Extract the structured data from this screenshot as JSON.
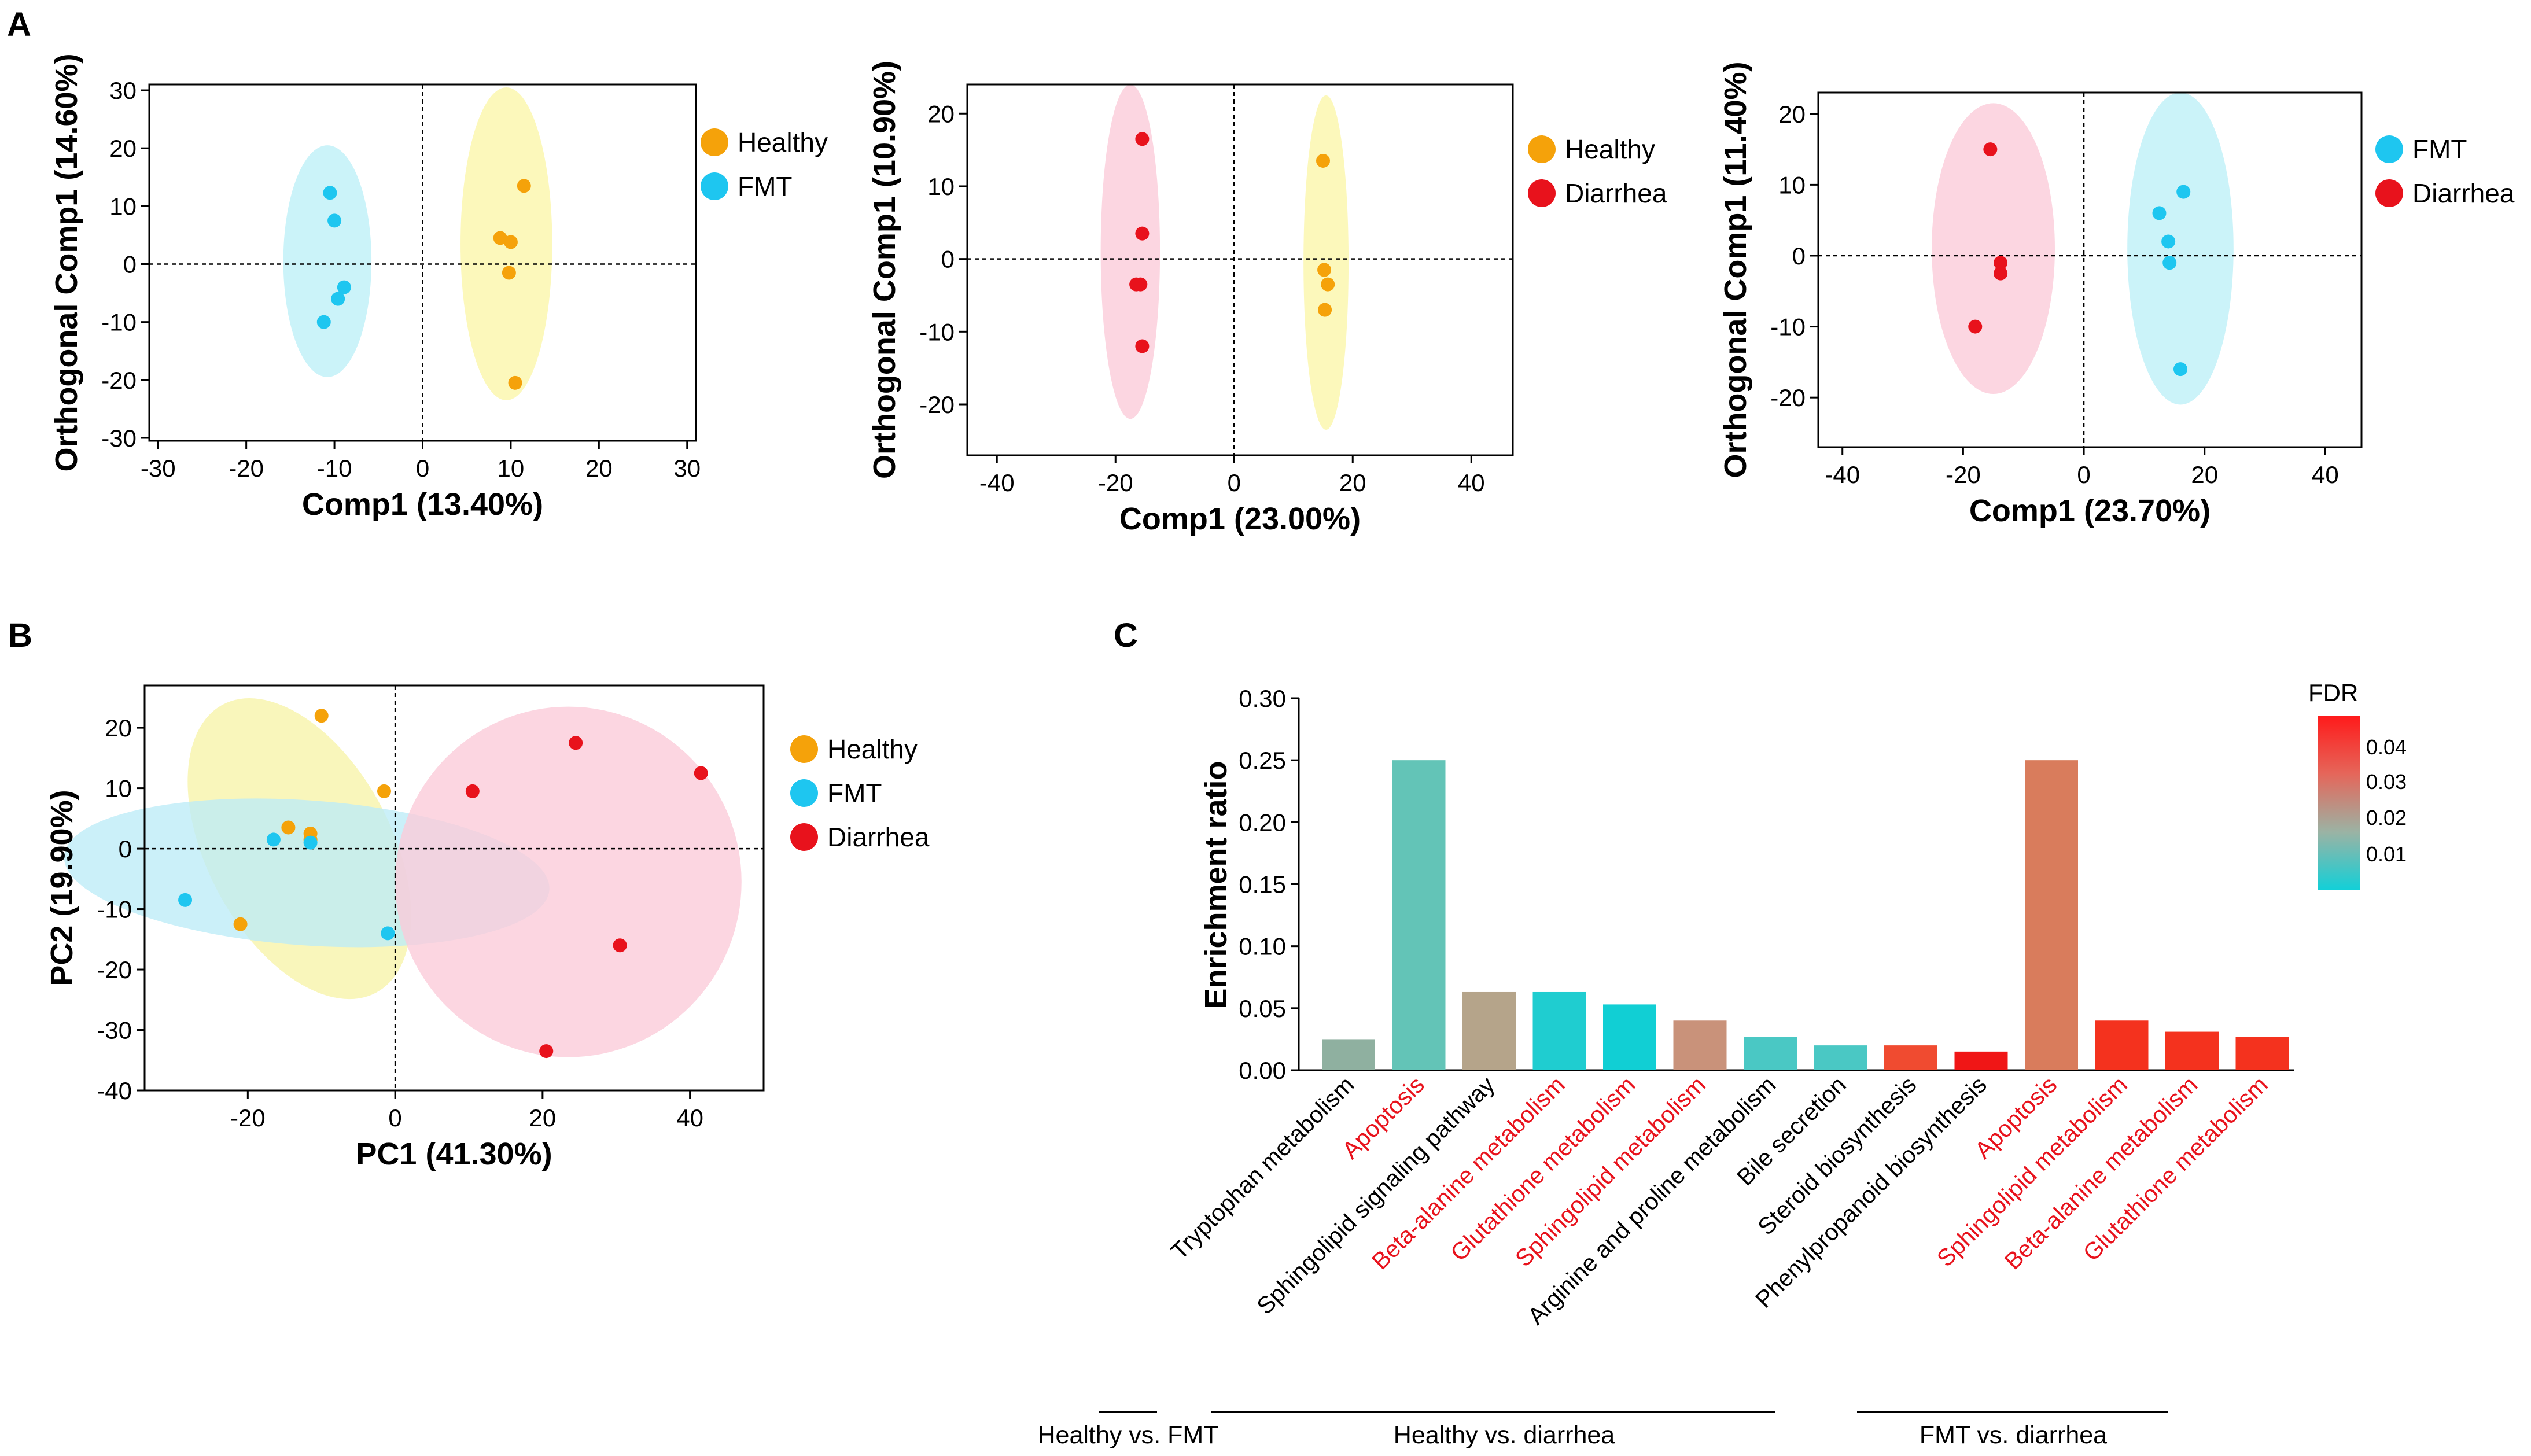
{
  "panel_letters": [
    "A",
    "B",
    "C"
  ],
  "chart_data": [
    {
      "id": "A1",
      "type": "scatter",
      "title": "",
      "xlabel": "Comp1 (13.40%)",
      "ylabel": "Orthogonal Comp1 (14.60%)",
      "xlim": [
        -31,
        31
      ],
      "ylim": [
        -30.5,
        31
      ],
      "xticks": [
        -30,
        -20,
        -10,
        0,
        10,
        20,
        30
      ],
      "yticks": [
        -30,
        -20,
        -10,
        0,
        10,
        20,
        30
      ],
      "legend_position": "right",
      "series": [
        {
          "name": "Healthy",
          "color": "#f5a20a",
          "ellipse_color": "#fbf6a8",
          "ellipse": {
            "cx": 9.5,
            "cy": 3.5,
            "rx": 5.2,
            "ry": 27
          },
          "points": [
            [
              11.5,
              13.5
            ],
            [
              8.8,
              4.5
            ],
            [
              10.0,
              3.8
            ],
            [
              9.8,
              -1.5
            ],
            [
              10.5,
              -20.5
            ]
          ]
        },
        {
          "name": "FMT",
          "color": "#1ec6f0",
          "ellipse_color": "#bdeff7",
          "ellipse": {
            "cx": -10.8,
            "cy": 0.5,
            "rx": 5.0,
            "ry": 20
          },
          "points": [
            [
              -10.5,
              12.3
            ],
            [
              -10.0,
              7.5
            ],
            [
              -8.9,
              -4.0
            ],
            [
              -9.6,
              -6.0
            ],
            [
              -11.2,
              -10.0
            ]
          ]
        }
      ]
    },
    {
      "id": "A2",
      "type": "scatter",
      "title": "",
      "xlabel": "Comp1 (23.00%)",
      "ylabel": "Orthogonal Comp1 (10.90%)",
      "xlim": [
        -45,
        47
      ],
      "ylim": [
        -27,
        24
      ],
      "xticks": [
        -40,
        -20,
        0,
        20,
        40
      ],
      "yticks": [
        -20,
        -10,
        0,
        10,
        20
      ],
      "legend_position": "right",
      "series": [
        {
          "name": "Healthy",
          "color": "#f5a20a",
          "ellipse_color": "#fbf6a8",
          "ellipse": {
            "cx": 15.5,
            "cy": -0.5,
            "rx": 3.8,
            "ry": 23
          },
          "points": [
            [
              15.0,
              13.5
            ],
            [
              15.2,
              -1.5
            ],
            [
              15.8,
              -3.5
            ],
            [
              15.3,
              -7.0
            ]
          ]
        },
        {
          "name": "Diarrhea",
          "color": "#e8121c",
          "ellipse_color": "#fbcbd8",
          "ellipse": {
            "cx": -17.5,
            "cy": 1.0,
            "rx": 5.0,
            "ry": 23
          },
          "points": [
            [
              -15.5,
              16.5
            ],
            [
              -15.5,
              3.5
            ],
            [
              -16.5,
              -3.5
            ],
            [
              -15.8,
              -3.5
            ],
            [
              -15.5,
              -12.0
            ]
          ]
        }
      ]
    },
    {
      "id": "A3",
      "type": "scatter",
      "title": "",
      "xlabel": "Comp1 (23.70%)",
      "ylabel": "Orthogonal Comp1 (11.40%)",
      "xlim": [
        -44,
        46
      ],
      "ylim": [
        -27,
        23
      ],
      "xticks": [
        -40,
        -20,
        0,
        20,
        40
      ],
      "yticks": [
        -20,
        -10,
        0,
        10,
        20
      ],
      "legend_position": "right",
      "series": [
        {
          "name": "FMT",
          "color": "#1ec6f0",
          "ellipse_color": "#bdeff7",
          "ellipse": {
            "cx": 16,
            "cy": 1.0,
            "rx": 8.8,
            "ry": 22
          },
          "points": [
            [
              16.5,
              9.0
            ],
            [
              12.5,
              6.0
            ],
            [
              14.0,
              2.0
            ],
            [
              14.2,
              -1.0
            ],
            [
              16.0,
              -16.0
            ]
          ]
        },
        {
          "name": "Diarrhea",
          "color": "#e8121c",
          "ellipse_color": "#fbcbd8",
          "ellipse": {
            "cx": -15,
            "cy": 1.0,
            "rx": 10.2,
            "ry": 20.5
          },
          "points": [
            [
              -15.5,
              15.0
            ],
            [
              -13.8,
              -1.0
            ],
            [
              -13.8,
              -2.5
            ],
            [
              -18.0,
              -10.0
            ]
          ]
        }
      ]
    },
    {
      "id": "B",
      "type": "scatter",
      "title": "",
      "xlabel": "PC1 (41.30%)",
      "ylabel": "PC2 (19.90%)",
      "xlim": [
        -34,
        50
      ],
      "ylim": [
        -40,
        27
      ],
      "xticks": [
        -20,
        0,
        20,
        40
      ],
      "yticks": [
        -40,
        -30,
        -20,
        -10,
        0,
        10,
        20
      ],
      "legend_position": "right",
      "series": [
        {
          "name": "Healthy",
          "color": "#f5a20a",
          "ellipse_color": "#f7f3a8",
          "ellipse": {
            "cx": -13,
            "cy": 0,
            "rx": 12.5,
            "ry": 27,
            "rotate": 28
          },
          "points": [
            [
              -10,
              22
            ],
            [
              -1.5,
              9.5
            ],
            [
              -14.5,
              3.5
            ],
            [
              -11.5,
              2.5
            ],
            [
              -11.5,
              1.5
            ],
            [
              -21,
              -12.5
            ]
          ]
        },
        {
          "name": "FMT",
          "color": "#1ec6f0",
          "ellipse_color": "#bcecf7",
          "ellipse": {
            "cx": -12,
            "cy": -4,
            "rx": 33,
            "ry": 12,
            "rotate": -4
          },
          "points": [
            [
              -16.5,
              1.5
            ],
            [
              -11.5,
              1.0
            ],
            [
              -28.5,
              -8.5
            ],
            [
              -1.0,
              -14.0
            ]
          ]
        },
        {
          "name": "Diarrhea",
          "color": "#e8121c",
          "ellipse_color": "#fbcbd8",
          "ellipse": {
            "cx": 23.5,
            "cy": -5.5,
            "rx": 23.5,
            "ry": 29
          },
          "points": [
            [
              24.5,
              17.5
            ],
            [
              41.5,
              12.5
            ],
            [
              10.5,
              9.5
            ],
            [
              30.5,
              -16.0
            ],
            [
              20.5,
              -33.5
            ]
          ]
        }
      ]
    },
    {
      "id": "C",
      "type": "bar",
      "title": "",
      "xlabel": "",
      "ylabel": "Enrichment ratio",
      "ylim": [
        0,
        0.3
      ],
      "yticks": [
        "0.00",
        "0.05",
        "0.10",
        "0.15",
        "0.20",
        "0.25",
        "0.30"
      ],
      "categories": [
        "Tryptophan metabolism",
        "Apoptosis",
        "Sphingolipid signaling pathway",
        "Beta-alanine metabolism",
        "Glutathione metabolism",
        "Sphingolipid metabolism",
        "Arginine and proline metabolism",
        "Bile secretion",
        "Steroid biosynthesis",
        "Phenylpropanoid biosynthesis",
        "Apoptosis",
        "Sphingolipid metabolism",
        "Beta-alanine metabolism",
        "Glutathione metabolism"
      ],
      "values": [
        0.025,
        0.25,
        0.063,
        0.063,
        0.053,
        0.04,
        0.027,
        0.02,
        0.02,
        0.015,
        0.25,
        0.04,
        0.031,
        0.027
      ],
      "bar_colors": [
        "#8fb0a0",
        "#63c4b7",
        "#b5a48a",
        "#1fcdd0",
        "#11cfd4",
        "#c9927a",
        "#4ac8c4",
        "#4ac8c4",
        "#f04b30",
        "#f01616",
        "#d97c5c",
        "#f4321e",
        "#f4321e",
        "#f4321e"
      ],
      "label_colors": [
        "#000000",
        "#e8121c",
        "#000000",
        "#e8121c",
        "#e8121c",
        "#e8121c",
        "#000000",
        "#000000",
        "#000000",
        "#000000",
        "#e8121c",
        "#e8121c",
        "#e8121c",
        "#e8121c"
      ],
      "legend": {
        "title": "FDR",
        "ticks": [
          "0.04",
          "0.03",
          "0.02",
          "0.01"
        ],
        "colors_top_to_bottom": [
          "#ff1a1a",
          "#e5665a",
          "#9bb3a4",
          "#11d0d8"
        ]
      },
      "groups": [
        "Healthy vs. FMT",
        "Healthy vs. diarrhea",
        "FMT vs. diarrhea"
      ]
    }
  ]
}
